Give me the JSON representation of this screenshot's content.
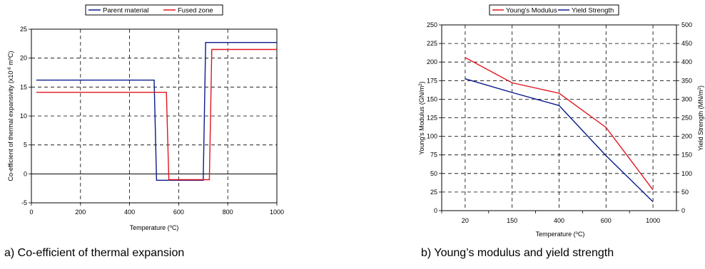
{
  "captions": {
    "a": "a) Co-efficient of thermal expansion",
    "b": "b) Young’s modulus and yield strength"
  },
  "colors": {
    "blue": "#0a1a8c",
    "red": "#e0161e",
    "grid": "#000000"
  },
  "chart_data": [
    {
      "type": "line",
      "xlabel_main": "Temperature (",
      "xlabel_sup": "o",
      "xlabel_tail": "C)",
      "ylabel_main": "Co-efficient of thermal expansivity (x10",
      "ylabel_sup1": "-6",
      "ylabel_mid": " m",
      "ylabel_sup2": "o",
      "ylabel_tail": "C)",
      "xlim": [
        0,
        1000
      ],
      "ylim": [
        -5,
        25
      ],
      "xticks": [
        0,
        200,
        400,
        600,
        800,
        1000
      ],
      "yticks": [
        -5,
        0,
        5,
        10,
        15,
        20,
        25
      ],
      "grid": true,
      "legend_position": "top-center",
      "series": [
        {
          "name": "Parent material",
          "color": "#0a1a8c",
          "x": [
            20,
            500,
            510,
            700,
            710,
            1000
          ],
          "y": [
            16.2,
            16.2,
            -1.1,
            -1.1,
            22.7,
            22.7
          ]
        },
        {
          "name": "Fused zone",
          "color": "#e0161e",
          "x": [
            20,
            550,
            560,
            725,
            735,
            1000
          ],
          "y": [
            14.1,
            14.1,
            -1.0,
            -1.0,
            21.5,
            21.5
          ]
        }
      ]
    },
    {
      "type": "line",
      "xlabel_main": "Temperature (",
      "xlabel_sup": "o",
      "xlabel_tail": "C)",
      "ylabel_left_main": "Young's Modulus (GN/m",
      "ylabel_left_sup": "2",
      "ylabel_left_tail": ")",
      "ylabel_right_main": "Yield Strength (MN/m",
      "ylabel_right_sup": "2",
      "ylabel_right_tail": ")",
      "categories": [
        "20",
        "150",
        "400",
        "600",
        "1000"
      ],
      "ylim_left": [
        0,
        250
      ],
      "ylim_right": [
        0,
        500
      ],
      "yticks_left": [
        0,
        25,
        50,
        75,
        100,
        125,
        150,
        175,
        200,
        225,
        250
      ],
      "yticks_right": [
        0,
        50,
        100,
        150,
        200,
        250,
        300,
        350,
        400,
        450,
        500
      ],
      "grid": true,
      "legend_position": "top-center",
      "series": [
        {
          "name": "Young's Modulus",
          "color": "#e0161e",
          "axis": "left",
          "values": [
            206,
            172,
            158,
            112,
            28
          ]
        },
        {
          "name": "Yield Strength",
          "color": "#0a1a8c",
          "axis": "right",
          "values": [
            355,
            318,
            283,
            148,
            24
          ]
        }
      ]
    }
  ]
}
